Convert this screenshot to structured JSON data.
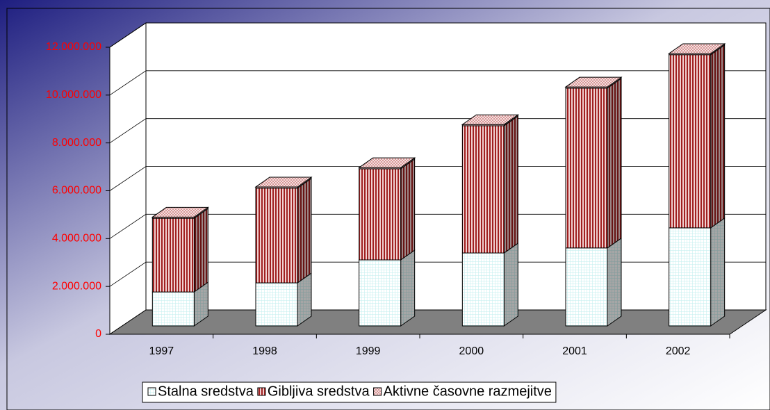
{
  "chart_data": {
    "type": "bar3d_stacked",
    "categories": [
      "1997",
      "1998",
      "1999",
      "2000",
      "2001",
      "2002"
    ],
    "series": [
      {
        "name": "Stalna sredstva",
        "color": "#c8f0f0",
        "values": [
          1420000,
          1800000,
          2760000,
          3050000,
          3260000,
          4100000
        ]
      },
      {
        "name": "Gibljiva sredstva",
        "color": "#a02020",
        "values": [
          3080000,
          3960000,
          3810000,
          5320000,
          6680000,
          7240000
        ]
      },
      {
        "name": "Aktivne časovne razmejitve",
        "color": "#d08080",
        "values": [
          50000,
          50000,
          50000,
          50000,
          50000,
          50000
        ]
      }
    ],
    "ylim": [
      0,
      12000000
    ],
    "yticks": [
      0,
      {
        "value": 2000000,
        "label": "2.000.000"
      },
      {
        "value": 4000000,
        "label": "4.000.000"
      },
      {
        "value": 6000000,
        "label": "6.000.000"
      },
      {
        "value": 8000000,
        "label": "8.000.000"
      },
      {
        "value": 10000000,
        "label": "10.000.000"
      },
      {
        "value": 12000000,
        "label": "12.000.000"
      }
    ],
    "grid": true,
    "legend": "bottom"
  }
}
